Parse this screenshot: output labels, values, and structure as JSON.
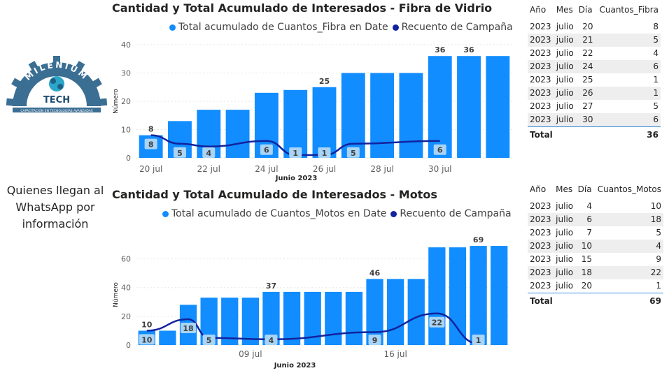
{
  "logo": {
    "top_text": "MILENIUM",
    "main_text": "TECH",
    "tagline": "CAPACITACIÓN EN TECNOLOGÍAS AVANZADAS"
  },
  "side_note": [
    "Quienes llegan al",
    "WhatsApp por",
    "información"
  ],
  "colors": {
    "bar": "#118dff",
    "line": "#12239e",
    "bar_label_bg": "#a9d4f5"
  },
  "charts": [
    {
      "title": "Cantidad y Total Acumulado de Interesados - Fibra de Vidrio",
      "legend": [
        "Total acumulado de Cuantos_Fibra en Date",
        "Recuento de Campaña"
      ],
      "xlabel": "Junio 2023",
      "ylabel": "Número",
      "yticks": [
        "0",
        "10",
        "20",
        "30",
        "40"
      ],
      "xticks": [
        "20 jul",
        "22 jul",
        "24 jul",
        "26 jul",
        "28 jul",
        "30 jul"
      ]
    },
    {
      "title": "Cantidad y Total Acumulado de Interesados - Motos",
      "legend": [
        "Total acumulado de Cuantos_Motos en Date",
        "Recuento de Campaña"
      ],
      "xlabel": "Junio 2023",
      "ylabel": "Número",
      "yticks": [
        "0",
        "20",
        "40",
        "60"
      ],
      "xticks": [
        "09 jul",
        "16 jul"
      ]
    }
  ],
  "chart_data": [
    {
      "type": "bar",
      "title": "Cantidad y Total Acumulado de Interesados - Fibra de Vidrio",
      "x": [
        20,
        21,
        22,
        23,
        24,
        25,
        26,
        27,
        28,
        29,
        30,
        31,
        32
      ],
      "series": [
        {
          "name": "Total acumulado de Cuantos_Fibra en Date",
          "values": [
            8,
            13,
            17,
            17,
            23,
            24,
            25,
            30,
            30,
            30,
            36,
            36,
            36
          ]
        },
        {
          "name": "Recuento de Campaña",
          "x": [
            20,
            21,
            22,
            24,
            25,
            26,
            27,
            30
          ],
          "values": [
            8,
            5,
            4,
            6,
            1,
            1,
            5,
            6
          ]
        }
      ],
      "bar_labels": [
        {
          "x": 20,
          "text": "8"
        },
        {
          "x": 26,
          "text": "25"
        },
        {
          "x": 30,
          "text": "36"
        },
        {
          "x": 31,
          "text": "36"
        }
      ],
      "ylim": [
        0,
        40
      ],
      "xlabel": "Junio 2023",
      "ylabel": "Número"
    },
    {
      "type": "bar",
      "title": "Cantidad y Total Acumulado de Interesados - Motos",
      "x": [
        4,
        5,
        6,
        7,
        8,
        9,
        10,
        11,
        12,
        13,
        14,
        15,
        16,
        17,
        18,
        19,
        20,
        21
      ],
      "series": [
        {
          "name": "Total acumulado de Cuantos_Motos en Date",
          "values": [
            10,
            10,
            28,
            33,
            33,
            33,
            37,
            37,
            37,
            37,
            37,
            46,
            46,
            46,
            68,
            68,
            69,
            69
          ]
        },
        {
          "name": "Recuento de Campaña",
          "x": [
            4,
            6,
            7,
            10,
            15,
            18,
            20
          ],
          "values": [
            10,
            18,
            5,
            4,
            9,
            22,
            1
          ]
        }
      ],
      "bar_labels": [
        {
          "x": 4,
          "text": "10"
        },
        {
          "x": 10,
          "text": "37"
        },
        {
          "x": 15,
          "text": "46"
        },
        {
          "x": 20,
          "text": "69"
        }
      ],
      "ylim": [
        0,
        70
      ],
      "xlabel": "Junio 2023",
      "ylabel": "Número"
    }
  ],
  "tables": [
    {
      "headers": [
        "Año",
        "Mes",
        "Día",
        "Cuantos_Fibra"
      ],
      "rows": [
        [
          "2023",
          "julio",
          "20",
          "8"
        ],
        [
          "2023",
          "julio",
          "21",
          "5"
        ],
        [
          "2023",
          "julio",
          "22",
          "4"
        ],
        [
          "2023",
          "julio",
          "24",
          "6"
        ],
        [
          "2023",
          "julio",
          "25",
          "1"
        ],
        [
          "2023",
          "julio",
          "26",
          "1"
        ],
        [
          "2023",
          "julio",
          "27",
          "5"
        ],
        [
          "2023",
          "julio",
          "30",
          "6"
        ]
      ],
      "total_label": "Total",
      "total_value": "36"
    },
    {
      "headers": [
        "Año",
        "Mes",
        "Día",
        "Cuantos_Motos"
      ],
      "rows": [
        [
          "2023",
          "julio",
          "4",
          "10"
        ],
        [
          "2023",
          "julio",
          "6",
          "18"
        ],
        [
          "2023",
          "julio",
          "7",
          "5"
        ],
        [
          "2023",
          "julio",
          "10",
          "4"
        ],
        [
          "2023",
          "julio",
          "15",
          "9"
        ],
        [
          "2023",
          "julio",
          "18",
          "22"
        ],
        [
          "2023",
          "julio",
          "20",
          "1"
        ]
      ],
      "total_label": "Total",
      "total_value": "69"
    }
  ]
}
